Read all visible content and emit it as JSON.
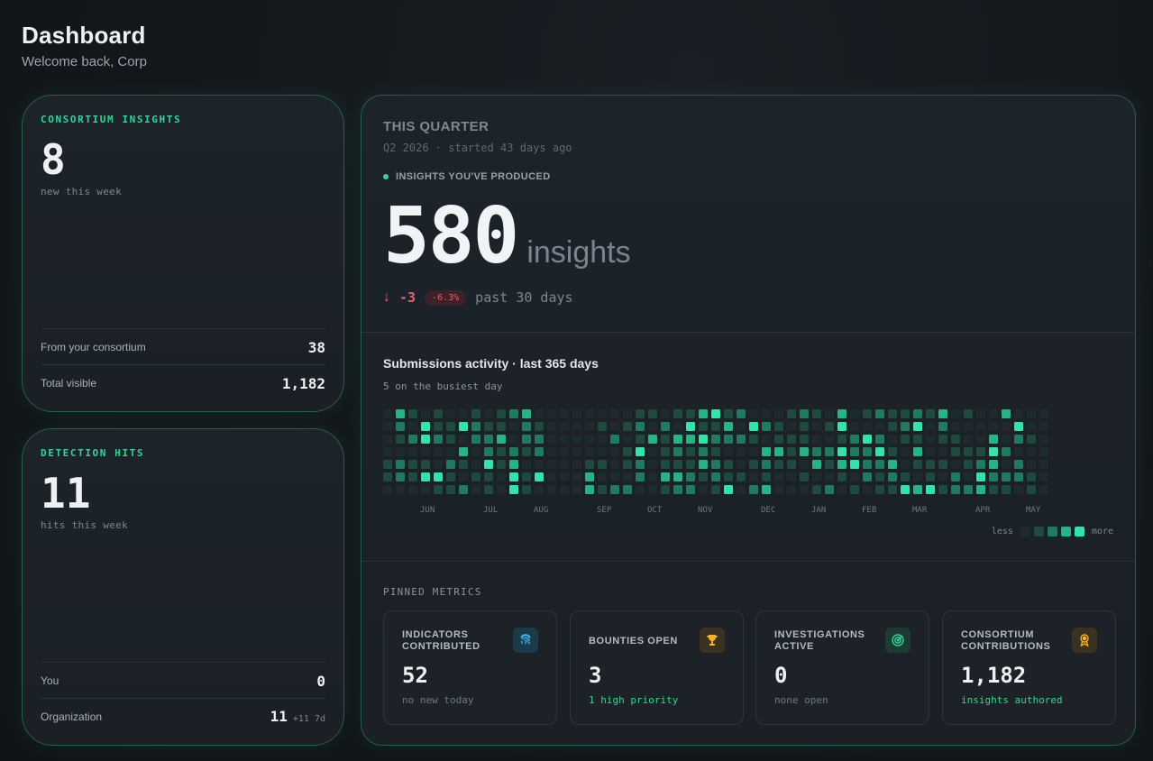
{
  "page": {
    "title": "Dashboard",
    "subtitle": "Welcome back, Corp"
  },
  "consortium": {
    "eyebrow": "CONSORTIUM INSIGHTS",
    "value": "8",
    "caption": "new this week",
    "rows": [
      {
        "label": "From your consortium",
        "value": "38"
      },
      {
        "label": "Total visible",
        "value": "1,182"
      }
    ]
  },
  "detection": {
    "eyebrow": "DETECTION HITS",
    "value": "11",
    "caption": "hits this week",
    "rows": [
      {
        "label": "You",
        "value": "0",
        "extra": ""
      },
      {
        "label": "Organization",
        "value": "11",
        "extra": "+11 7d"
      }
    ]
  },
  "quarter": {
    "title": "THIS QUARTER",
    "subtitle": "Q2 2026 · started 43 days ago",
    "produced_label": "INSIGHTS YOU'VE PRODUCED",
    "value": "580",
    "unit": "insights",
    "delta_arrow": "↓",
    "delta": "-3",
    "delta_pct": "-6.3%",
    "delta_period": "past 30 days"
  },
  "activity": {
    "title": "Submissions activity · last 365 days",
    "subtitle": "5 on the busiest day",
    "months": [
      "JUN",
      "JUL",
      "AUG",
      "SEP",
      "OCT",
      "NOV",
      "DEC",
      "JAN",
      "FEB",
      "MAR",
      "APR",
      "MAY"
    ],
    "legend_less": "less",
    "legend_more": "more",
    "colors": [
      "#1e2a2d",
      "#1f4a40",
      "#207a62",
      "#26b486",
      "#34e3ab"
    ]
  },
  "pinned": {
    "label": "PINNED METRICS",
    "metrics": [
      {
        "title": "INDICATORS CONTRIBUTED",
        "icon": "fingerprint-icon",
        "value": "52",
        "note": "no new today",
        "note_green": false,
        "icon_bg": "#1d3a4a",
        "icon_color": "#38bdf8"
      },
      {
        "title": "BOUNTIES OPEN",
        "icon": "trophy-icon",
        "value": "3",
        "note": "1 high priority",
        "note_green": true,
        "icon_bg": "#3a3220",
        "icon_color": "#f5b32a"
      },
      {
        "title": "INVESTIGATIONS ACTIVE",
        "icon": "target-icon",
        "value": "0",
        "note": "none open",
        "note_green": false,
        "icon_bg": "#1b3b33",
        "icon_color": "#34d399"
      },
      {
        "title": "CONSORTIUM CONTRIBUTIONS",
        "icon": "award-icon",
        "value": "1,182",
        "note": "insights authored",
        "note_green": true,
        "icon_bg": "#3a3220",
        "icon_color": "#f5b32a"
      }
    ]
  }
}
